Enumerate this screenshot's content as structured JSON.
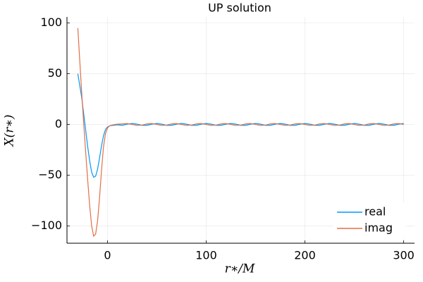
{
  "chart_data": {
    "type": "line",
    "title": "UP solution",
    "x_label": "r∗/M",
    "y_label": "X(r∗)",
    "x": [
      -30,
      -28,
      -26,
      -24,
      -22,
      -20,
      -18,
      -16,
      -14,
      -12,
      -10,
      -8,
      -6,
      -4,
      -2,
      0,
      2,
      4,
      6,
      8,
      10,
      15,
      20,
      25,
      30,
      35,
      40,
      45,
      50,
      55,
      60,
      65,
      70,
      75,
      80,
      85,
      90,
      95,
      100,
      105,
      110,
      115,
      120,
      125,
      130,
      135,
      140,
      145,
      150,
      155,
      160,
      165,
      170,
      175,
      180,
      185,
      190,
      195,
      200,
      205,
      210,
      215,
      220,
      225,
      230,
      235,
      240,
      245,
      250,
      255,
      260,
      265,
      270,
      275,
      280,
      285,
      290,
      295,
      300
    ],
    "series": [
      {
        "name": "real",
        "color": "#009af9",
        "values": [
          50,
          38,
          26,
          10,
          -6,
          -22,
          -36,
          -47,
          -52,
          -51,
          -44,
          -33,
          -21,
          -11,
          -5,
          -2.5,
          -1.5,
          -1,
          -0.8,
          -0.6,
          -0.3,
          -0.81,
          0.31,
          1,
          0.31,
          -0.81,
          -0.81,
          0.31,
          1,
          0.31,
          -0.81,
          -0.81,
          0.31,
          1,
          0.31,
          -0.81,
          -0.81,
          0.31,
          1,
          0.31,
          -0.81,
          -0.81,
          0.31,
          1,
          0.31,
          -0.81,
          -0.81,
          0.31,
          1,
          0.31,
          -0.81,
          -0.81,
          0.31,
          1,
          0.31,
          -0.81,
          -0.81,
          0.31,
          1,
          0.31,
          -0.81,
          -0.81,
          0.31,
          1,
          0.31,
          -0.81,
          -0.81,
          0.31,
          1,
          0.31,
          -0.81,
          -0.81,
          0.31,
          1,
          0.31,
          -0.81,
          -0.81,
          0.31,
          1
        ]
      },
      {
        "name": "imag",
        "color": "#e26f46",
        "values": [
          95,
          62,
          30,
          0,
          -28,
          -55,
          -80,
          -100,
          -110,
          -108,
          -95,
          -72,
          -45,
          -22,
          -9,
          -3.5,
          -1.5,
          -0.8,
          -0.3,
          0,
          0.3,
          0.59,
          0.95,
          0,
          -0.95,
          -0.59,
          0.59,
          0.95,
          0,
          -0.95,
          -0.59,
          0.59,
          0.95,
          0,
          -0.95,
          -0.59,
          0.59,
          0.95,
          0,
          -0.95,
          -0.59,
          0.59,
          0.95,
          0,
          -0.95,
          -0.59,
          0.59,
          0.95,
          0,
          -0.95,
          -0.59,
          0.59,
          0.95,
          0,
          -0.95,
          -0.59,
          0.59,
          0.95,
          0,
          -0.95,
          -0.59,
          0.59,
          0.95,
          0,
          -0.95,
          -0.59,
          0.59,
          0.95,
          0,
          -0.95,
          -0.59,
          0.59,
          0.95,
          0,
          -0.95,
          -0.59,
          0.59,
          0.95,
          0
        ]
      }
    ],
    "xlim": [
      -41,
      311
    ],
    "ylim": [
      -117,
      106
    ],
    "xticks": [
      0,
      100,
      200,
      300
    ],
    "yticks": [
      {
        "value": -100,
        "label": "−100"
      },
      {
        "value": -50,
        "label": "−50"
      },
      0,
      50,
      100
    ],
    "grid": true,
    "legend": "bottom-right"
  }
}
